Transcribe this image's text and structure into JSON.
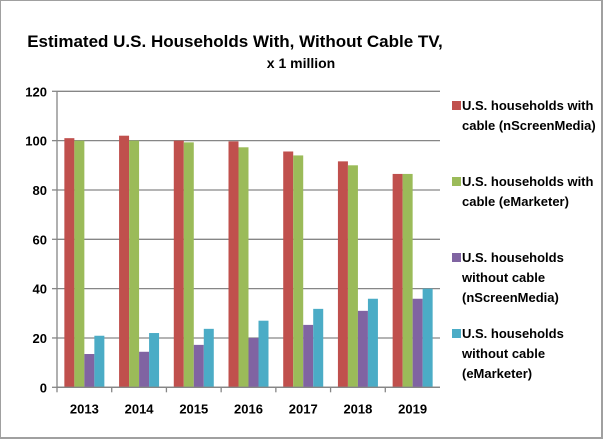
{
  "chart_data": {
    "type": "bar",
    "title": "Estimated U.S. Households  With, Without Cable TV,",
    "subtitle": "x 1 million",
    "xlabel": "",
    "ylabel": "",
    "ylim": [
      0,
      120
    ],
    "yticks": [
      "0",
      "20",
      "40",
      "60",
      "80",
      "100",
      "120"
    ],
    "grid": true,
    "legend_position": "right",
    "categories": [
      "2013",
      "2014",
      "2015",
      "2016",
      "2017",
      "2018",
      "2019"
    ],
    "series": [
      {
        "name": "U.S. households with cable (nScreenMedia)",
        "color": "#c0504d",
        "values": [
          101,
          102,
          100,
          99.7,
          95.6,
          91.6,
          86.5
        ]
      },
      {
        "name": "U.S. households with cable (eMarketer)",
        "color": "#9bbb59",
        "values": [
          100,
          100,
          99.3,
          97.3,
          94,
          90,
          86.5
        ]
      },
      {
        "name": "U.S. households without cable (nScreenMedia)",
        "color": "#8064a2",
        "values": [
          13.5,
          14.4,
          17.2,
          20,
          25.3,
          31,
          35.9
        ]
      },
      {
        "name": "U.S. households without cable (eMarketer)",
        "color": "#4bacc6",
        "values": [
          20.9,
          22,
          23.7,
          27,
          31.8,
          35.9,
          40
        ]
      }
    ]
  }
}
